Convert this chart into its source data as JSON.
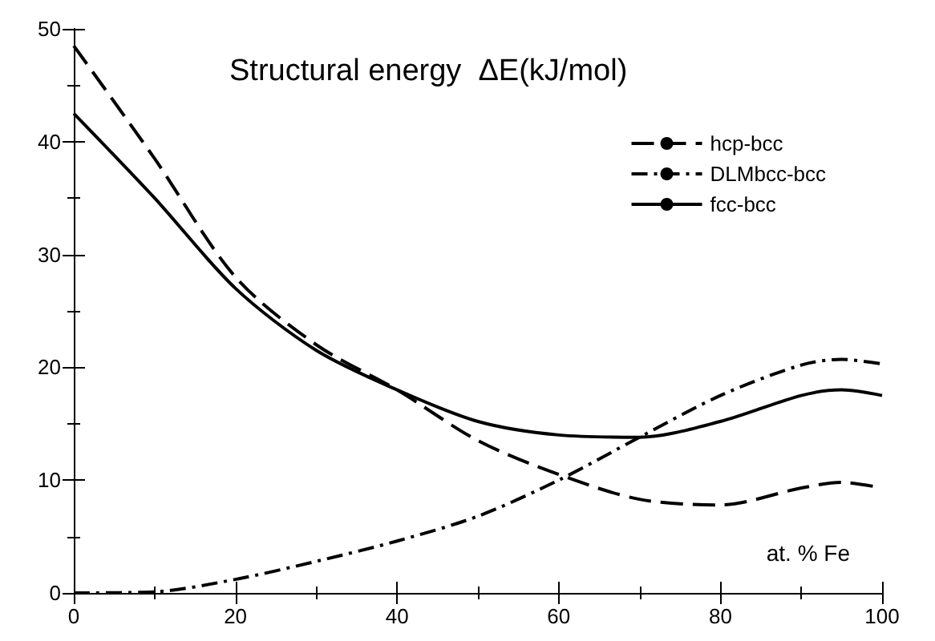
{
  "chart_data": {
    "type": "line",
    "title": "Structural energy  ΔE(kJ/mol)",
    "xlabel": "at. % Fe",
    "x": [
      0,
      10,
      20,
      30,
      40,
      50,
      60,
      70,
      80,
      90,
      95,
      100
    ],
    "series": [
      {
        "name": "hcp-bcc",
        "color": "#000000",
        "line_style": "dashed",
        "values": [
          48.5,
          38.5,
          28,
          22,
          18,
          13.5,
          10.5,
          8.3,
          7.8,
          9.3,
          9.8,
          9.3
        ]
      },
      {
        "name": "DLMbcc-bcc",
        "color": "#000000",
        "line_style": "dashdot",
        "values": [
          0,
          0.1,
          1.2,
          2.8,
          4.6,
          6.8,
          10,
          13.8,
          17.5,
          20.2,
          20.7,
          20.3
        ]
      },
      {
        "name": "fcc-bcc",
        "color": "#000000",
        "line_style": "solid",
        "values": [
          42.5,
          35,
          27,
          21.5,
          18,
          15.2,
          14,
          13.8,
          15.2,
          17.5,
          18,
          17.5
        ]
      }
    ],
    "xlim": [
      0,
      100
    ],
    "xticks": [
      0,
      20,
      40,
      60,
      80,
      100
    ],
    "ylim": [
      0,
      50
    ],
    "yticks": [
      0,
      10,
      20,
      30,
      40,
      50
    ],
    "grid": false,
    "legend": "top right",
    "marker": "none"
  }
}
